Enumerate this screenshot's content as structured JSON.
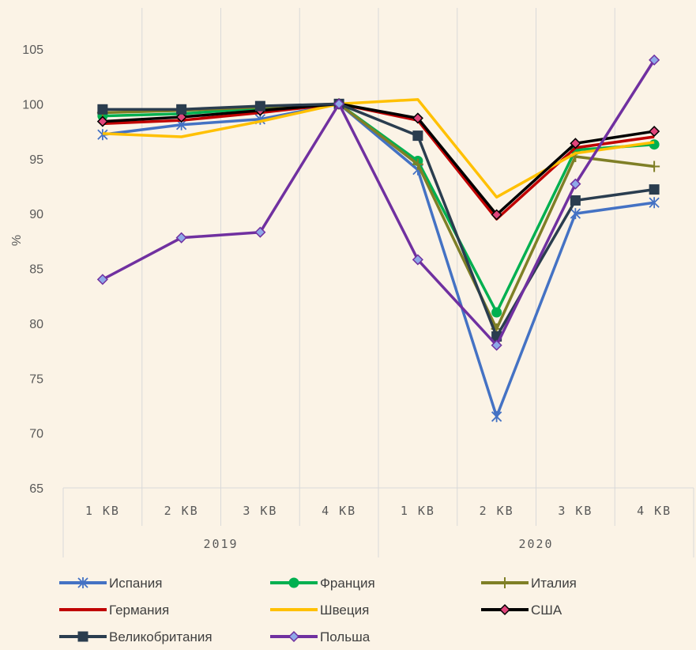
{
  "chart_data": {
    "type": "line",
    "title": "",
    "ylabel": "%",
    "ylim": [
      65,
      105
    ],
    "yticks": [
      65,
      70,
      75,
      80,
      85,
      90,
      95,
      100,
      105
    ],
    "groups": [
      {
        "label": "2019",
        "categories": [
          "1 КВ",
          "2 КВ",
          "3 КВ",
          "4 КВ"
        ]
      },
      {
        "label": "2020",
        "categories": [
          "1 КВ",
          "2 КВ",
          "3 КВ",
          "4 КВ"
        ]
      }
    ],
    "categories": [
      "1 КВ",
      "2 КВ",
      "3 КВ",
      "4 КВ",
      "1 КВ",
      "2 КВ",
      "3 КВ",
      "4 КВ"
    ],
    "gridlines": "vertical",
    "legend_position": "bottom",
    "series": [
      {
        "name": "Испания",
        "color": "#4472c4",
        "marker": "star",
        "values": [
          97.2,
          98.1,
          98.6,
          100,
          94.0,
          71.5,
          90.0,
          91.0
        ]
      },
      {
        "name": "Франция",
        "color": "#00b050",
        "marker": "circle",
        "values": [
          98.9,
          99.1,
          99.6,
          100,
          94.8,
          81.0,
          95.8,
          96.3
        ]
      },
      {
        "name": "Италия",
        "color": "#7f7f26",
        "marker": "plus",
        "values": [
          99.2,
          99.4,
          99.7,
          100,
          94.5,
          79.5,
          95.2,
          94.3
        ]
      },
      {
        "name": "Германия",
        "color": "#c00000",
        "marker": "none",
        "values": [
          98.2,
          98.5,
          99.2,
          100,
          98.5,
          89.5,
          96.0,
          97.0
        ]
      },
      {
        "name": "Швеция",
        "color": "#ffc000",
        "marker": "none",
        "values": [
          97.3,
          97.0,
          98.4,
          100,
          100.4,
          91.5,
          95.5,
          96.5
        ]
      },
      {
        "name": "США",
        "color": "#000000",
        "marker": "diamond",
        "marker_fill": "#e0457b",
        "values": [
          98.4,
          98.8,
          99.4,
          100,
          98.7,
          89.9,
          96.4,
          97.5
        ]
      },
      {
        "name": "Великобритания",
        "color": "#2a3d4f",
        "marker": "square",
        "values": [
          99.5,
          99.5,
          99.8,
          100,
          97.1,
          78.8,
          91.2,
          92.2
        ]
      },
      {
        "name": "Польша",
        "color": "#7030a0",
        "marker": "diamond",
        "marker_fill": "#8ea9e8",
        "values": [
          84.0,
          87.8,
          88.3,
          100,
          85.8,
          78.0,
          92.7,
          104.0
        ]
      }
    ]
  }
}
